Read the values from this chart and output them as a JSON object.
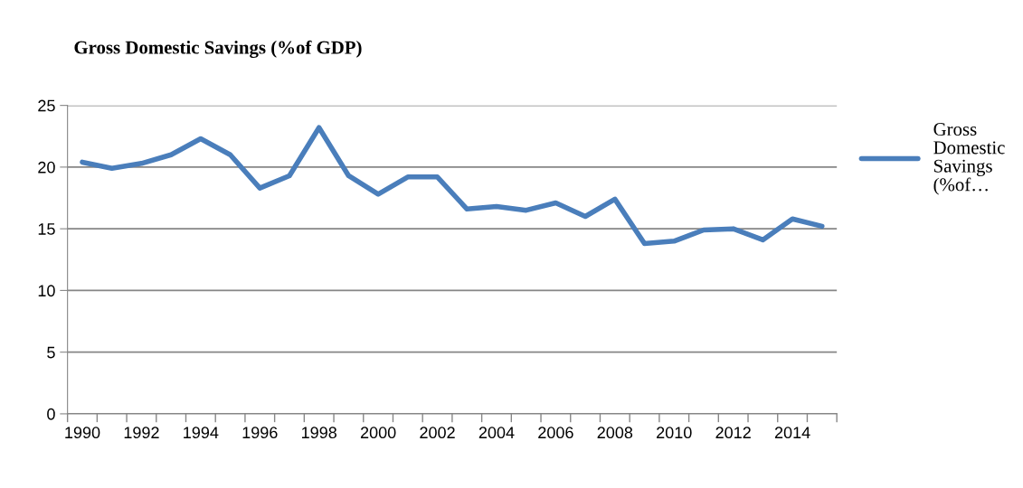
{
  "chart_data": {
    "type": "line",
    "title": "Gross Domestic Savings (%of GDP)",
    "categories": [
      "1990",
      null,
      "1992",
      null,
      "1994",
      null,
      "1996",
      null,
      "1998",
      null,
      "2000",
      null,
      "2002",
      null,
      "2004",
      null,
      "2006",
      null,
      "2008",
      null,
      "2010",
      null,
      "2012",
      null,
      "2014",
      null
    ],
    "series": [
      {
        "name": "Gross Domestic Savings (%of…",
        "color": "#4a7ebb",
        "values": [
          20.4,
          19.9,
          20.3,
          21.0,
          22.3,
          21.0,
          18.3,
          19.3,
          23.2,
          19.3,
          17.8,
          19.2,
          19.2,
          16.6,
          16.8,
          16.5,
          17.1,
          16.0,
          17.4,
          13.8,
          14.0,
          14.9,
          15.0,
          14.1,
          15.8,
          15.2
        ]
      }
    ],
    "ylim": [
      0,
      25
    ],
    "yticks": [
      0,
      5,
      10,
      15,
      20,
      25
    ],
    "grid": "y",
    "legend": "right",
    "marker": "none",
    "line_style": "solid"
  }
}
